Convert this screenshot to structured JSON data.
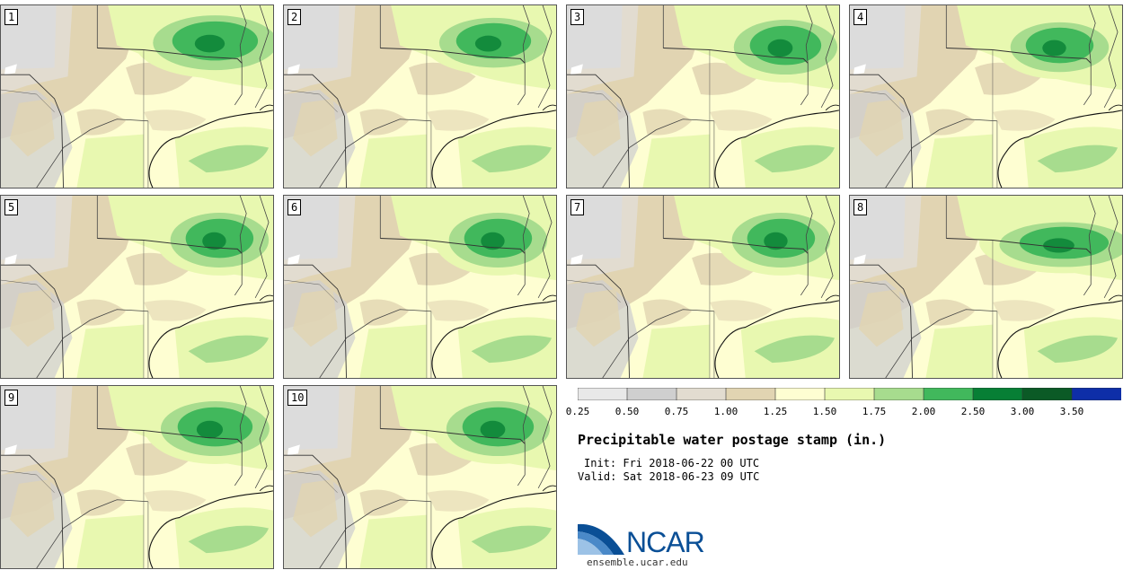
{
  "title": "Precipitable water postage stamp (in.)",
  "init_label": "Init:",
  "init_time": "Fri 2018-06-22 00 UTC",
  "valid_label": "Valid:",
  "valid_time": "Sat 2018-06-23 09 UTC",
  "logo_text": "NCAR",
  "site": "ensemble.ucar.edu",
  "members": [
    "1",
    "2",
    "3",
    "4",
    "5",
    "6",
    "7",
    "8",
    "9",
    "10"
  ],
  "colorbar": {
    "colors": [
      "#e8e8e8",
      "#cfcfcf",
      "#e2dcd0",
      "#e1d4b2",
      "#fefed2",
      "#e8f8b0",
      "#a7dc8e",
      "#41b85c",
      "#077f35",
      "#0b5a26",
      "#0e2ea8"
    ],
    "labels": [
      "0.25",
      "0.50",
      "0.75",
      "1.00",
      "1.25",
      "1.50",
      "1.75",
      "2.00",
      "2.50",
      "3.00",
      "3.50"
    ]
  }
}
